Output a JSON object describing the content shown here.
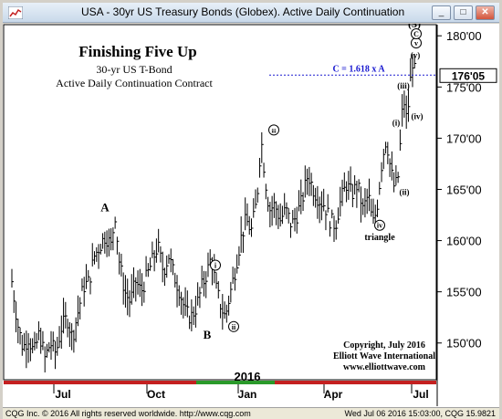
{
  "window": {
    "title": "USA - 30yr US Treasury Bonds (Globex). Active Daily Continuation",
    "minimize": "_",
    "maximize": "□",
    "close": "✕"
  },
  "header": {
    "title": "Finishing Five Up",
    "line1": "30-yr US T-Bond",
    "line2": "Active Daily Continuation Contract"
  },
  "credits": {
    "line1": "Copyright, July 2016",
    "line2": "Elliott Wave International",
    "line3": "www.elliottwave.com"
  },
  "status": {
    "left": "CQG Inc. © 2016 All rights reserved worldwide. http://www.cqg.com",
    "right": "Wed Jul 06 2016 15:03:00, CQG 15.9821"
  },
  "colors": {
    "bars": "#000000",
    "fib_line": "#1a1ad0",
    "price_box": "#ffffff",
    "time_strip_red": "#c42020",
    "time_strip_green": "#2a9a2a"
  },
  "chart_data": {
    "type": "ohlc-bar",
    "yaxis": {
      "min": 146.5,
      "max": 181,
      "ticks": [
        "180'00",
        "175'00",
        "170'00",
        "165'00",
        "160'00",
        "155'00",
        "150'00"
      ],
      "tick_values": [
        180,
        175,
        170,
        165,
        160,
        155,
        150
      ]
    },
    "xaxis": {
      "year_label": "2016",
      "ticks": [
        "Jul",
        "Oct",
        "Jan",
        "Apr",
        "Jul"
      ]
    },
    "last_price": "176'05",
    "last_price_value": 176.16,
    "fib_label": "C = 1.618 x A",
    "fib_value": 176.16,
    "series_path_points": [
      [
        0,
        156
      ],
      [
        4,
        152
      ],
      [
        8,
        149.5
      ],
      [
        12,
        150.5
      ],
      [
        16,
        149
      ],
      [
        20,
        151
      ],
      [
        24,
        148.5
      ],
      [
        28,
        150
      ],
      [
        32,
        149
      ],
      [
        36,
        151.5
      ],
      [
        40,
        152.5
      ],
      [
        44,
        150.5
      ],
      [
        48,
        153
      ],
      [
        52,
        155.5
      ],
      [
        56,
        156
      ],
      [
        60,
        158.5
      ],
      [
        64,
        159.5
      ],
      [
        68,
        160.5
      ],
      [
        72,
        159.5
      ],
      [
        75,
        162.5
      ],
      [
        78,
        158
      ],
      [
        82,
        155
      ],
      [
        86,
        154
      ],
      [
        90,
        156
      ],
      [
        94,
        155
      ],
      [
        98,
        156.5
      ],
      [
        102,
        158
      ],
      [
        106,
        159.5
      ],
      [
        110,
        157
      ],
      [
        114,
        158.5
      ],
      [
        118,
        156.5
      ],
      [
        122,
        155
      ],
      [
        126,
        153
      ],
      [
        130,
        152.5
      ],
      [
        134,
        153.5
      ],
      [
        138,
        155.5
      ],
      [
        142,
        157
      ],
      [
        145,
        158.5
      ],
      [
        148,
        155.5
      ],
      [
        152,
        153.5
      ],
      [
        155,
        152.5
      ],
      [
        158,
        154.5
      ],
      [
        162,
        157
      ],
      [
        166,
        160
      ],
      [
        170,
        162
      ],
      [
        174,
        161
      ],
      [
        178,
        164
      ],
      [
        181,
        170
      ],
      [
        184,
        166
      ],
      [
        187,
        163
      ],
      [
        191,
        163.5
      ],
      [
        195,
        162
      ],
      [
        199,
        163
      ],
      [
        203,
        161.5
      ],
      [
        207,
        162.5
      ],
      [
        211,
        164
      ],
      [
        215,
        166.5
      ],
      [
        219,
        165
      ],
      [
        223,
        164
      ],
      [
        227,
        163.5
      ],
      [
        231,
        162
      ],
      [
        235,
        161.5
      ],
      [
        239,
        164
      ],
      [
        243,
        165.5
      ],
      [
        247,
        164.5
      ],
      [
        251,
        165.5
      ],
      [
        255,
        163
      ],
      [
        259,
        164.5
      ],
      [
        262,
        161.5
      ],
      [
        265,
        163
      ],
      [
        269,
        168
      ],
      [
        272,
        170
      ],
      [
        275,
        167
      ],
      [
        278,
        165
      ],
      [
        281,
        166.5
      ],
      [
        283,
        172
      ],
      [
        285,
        173.5
      ],
      [
        287,
        171.5
      ],
      [
        289,
        175
      ],
      [
        291,
        177.5
      ],
      [
        293,
        176.2
      ]
    ],
    "annotations": [
      {
        "label": "A",
        "style": "plain",
        "value": 163.2
      },
      {
        "label": "B",
        "style": "plain",
        "value": 150.8
      },
      {
        "label": "i",
        "style": "circled",
        "value": 157.6
      },
      {
        "label": "ii",
        "style": "circled",
        "value": 151.6
      },
      {
        "label": "iii",
        "style": "circled",
        "value": 170.8
      },
      {
        "label": "iv",
        "style": "circled",
        "value": 161.5
      },
      {
        "label": "triangle",
        "style": "plain",
        "value": 160.4
      },
      {
        "label": "(i)",
        "style": "plain",
        "value": 171.6
      },
      {
        "label": "(ii)",
        "style": "plain",
        "value": 164.8
      },
      {
        "label": "(iii)",
        "style": "plain",
        "value": 175.2
      },
      {
        "label": "(iv)",
        "style": "plain",
        "value": 172.2
      },
      {
        "label": "(v)",
        "style": "plain",
        "value": 178.2
      },
      {
        "label": "v",
        "style": "circled",
        "value": 179.3
      },
      {
        "label": "C",
        "style": "circled",
        "value": 180.2
      },
      {
        "label": "(5)",
        "style": "plain",
        "value": 181.2
      }
    ],
    "grid": false
  }
}
